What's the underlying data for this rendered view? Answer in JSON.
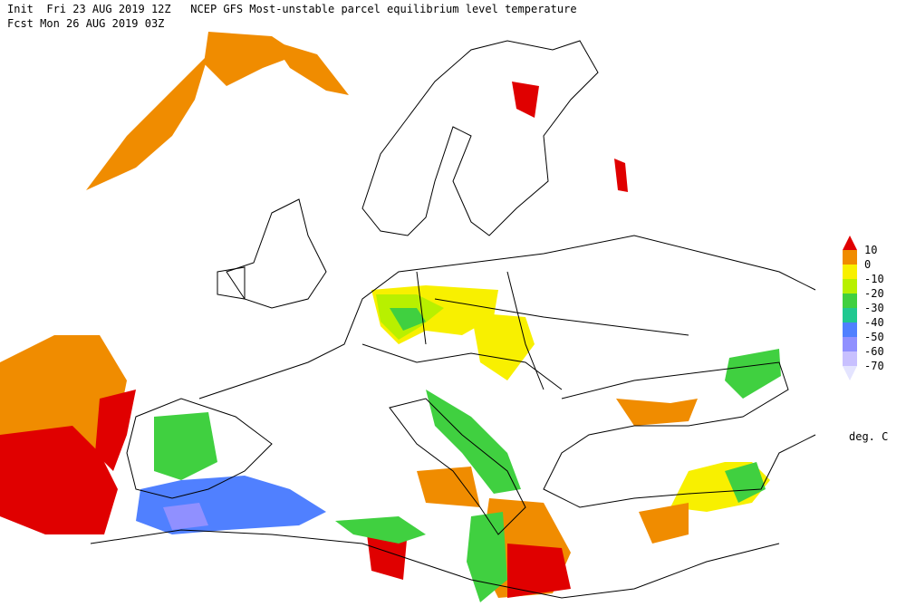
{
  "header": {
    "line1": "Init  Fri 23 AUG 2019 12Z   NCEP GFS Most-unstable parcel equilibrium level temperature",
    "line2": "Fcst Mon 26 AUG 2019 03Z"
  },
  "legend": {
    "labels": [
      10,
      0,
      -10,
      -20,
      -30,
      -40,
      -50,
      -60,
      -70
    ],
    "colors": [
      "#e00000",
      "#f08c00",
      "#f8f000",
      "#b8f000",
      "#40d040",
      "#20c890",
      "#5080ff",
      "#9090ff",
      "#c8c0ff",
      "#e4e4ff"
    ],
    "unit": "deg. C"
  }
}
